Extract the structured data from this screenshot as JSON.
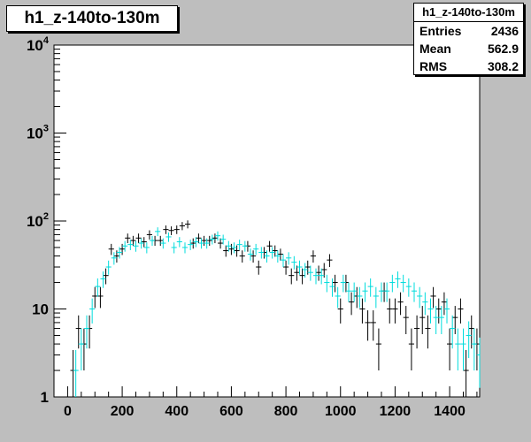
{
  "window": {
    "title": "h1_z-140to-130m"
  },
  "stats": {
    "title": "h1_z-140to-130m",
    "rows": [
      {
        "label": "Entries",
        "value": "2436"
      },
      {
        "label": "Mean",
        "value": "562.9"
      },
      {
        "label": "RMS",
        "value": "308.2"
      }
    ]
  },
  "colors": {
    "background": "#bebebe",
    "frame": "#ffffff",
    "series_black": "#000000",
    "series_cyan": "#00dcdc"
  },
  "chart_data": {
    "type": "scatter",
    "title": "h1_z-140to-130m",
    "xlabel": "",
    "ylabel": "",
    "xlim": [
      -50,
      1510
    ],
    "ylim": [
      1,
      10000
    ],
    "yscale": "log",
    "grid": false,
    "x_ticks": [
      0,
      200,
      400,
      600,
      800,
      1000,
      1200,
      1400
    ],
    "x_tick_labels": [
      "0",
      "200",
      "400",
      "600",
      "800",
      "1000",
      "1200",
      "1400"
    ],
    "y_ticks": [
      {
        "value": 1,
        "base": "1",
        "exp": ""
      },
      {
        "value": 10,
        "base": "10",
        "exp": ""
      },
      {
        "value": 100,
        "base": "10",
        "exp": "2"
      },
      {
        "value": 1000,
        "base": "10",
        "exp": "3"
      },
      {
        "value": 10000,
        "base": "10",
        "exp": "4"
      }
    ],
    "bin_half_width": 10,
    "series": [
      {
        "color": "#000000",
        "x": [
          20,
          40,
          60,
          80,
          100,
          120,
          140,
          160,
          180,
          200,
          220,
          240,
          260,
          280,
          300,
          320,
          340,
          360,
          380,
          400,
          420,
          440,
          460,
          480,
          500,
          520,
          540,
          560,
          580,
          600,
          620,
          640,
          660,
          680,
          700,
          720,
          740,
          760,
          780,
          800,
          820,
          840,
          860,
          880,
          900,
          920,
          940,
          960,
          980,
          1000,
          1020,
          1040,
          1060,
          1080,
          1100,
          1120,
          1140,
          1160,
          1180,
          1200,
          1220,
          1240,
          1260,
          1280,
          1300,
          1320,
          1340,
          1360,
          1380,
          1400,
          1420,
          1440,
          1460,
          1480,
          1500
        ],
        "y": [
          2,
          6,
          4,
          6,
          14,
          14,
          24,
          48,
          40,
          48,
          64,
          60,
          64,
          58,
          70,
          60,
          60,
          80,
          78,
          80,
          88,
          92,
          56,
          64,
          60,
          60,
          64,
          56,
          46,
          48,
          46,
          40,
          52,
          40,
          30,
          44,
          52,
          46,
          42,
          30,
          24,
          26,
          24,
          30,
          40,
          26,
          28,
          36,
          20,
          10,
          20,
          12,
          14,
          10,
          7,
          7,
          4,
          16,
          10,
          10,
          12,
          8,
          4,
          6,
          8,
          6,
          14,
          10,
          12,
          4,
          8,
          10,
          2,
          6,
          4
        ]
      },
      {
        "color": "#00dcdc",
        "x": [
          30,
          50,
          70,
          90,
          110,
          130,
          150,
          170,
          190,
          210,
          230,
          250,
          270,
          290,
          310,
          330,
          350,
          370,
          390,
          410,
          430,
          450,
          470,
          490,
          510,
          530,
          550,
          570,
          590,
          610,
          630,
          650,
          670,
          690,
          710,
          730,
          750,
          770,
          790,
          810,
          830,
          850,
          870,
          890,
          910,
          930,
          950,
          970,
          990,
          1010,
          1030,
          1050,
          1070,
          1090,
          1110,
          1130,
          1150,
          1170,
          1190,
          1210,
          1230,
          1250,
          1270,
          1290,
          1310,
          1330,
          1350,
          1370,
          1390,
          1410,
          1430,
          1450,
          1470,
          1490,
          1510
        ],
        "y": [
          2,
          4,
          6,
          10,
          18,
          22,
          30,
          38,
          44,
          52,
          54,
          52,
          56,
          50,
          60,
          76,
          56,
          66,
          50,
          58,
          50,
          54,
          58,
          56,
          56,
          62,
          68,
          62,
          52,
          50,
          54,
          52,
          42,
          48,
          44,
          40,
          44,
          40,
          36,
          38,
          34,
          30,
          28,
          26,
          24,
          24,
          20,
          18,
          14,
          20,
          16,
          16,
          14,
          16,
          18,
          14,
          16,
          16,
          20,
          22,
          20,
          18,
          16,
          14,
          12,
          10,
          8,
          8,
          10,
          6,
          4,
          4,
          5,
          4,
          3
        ]
      }
    ]
  }
}
